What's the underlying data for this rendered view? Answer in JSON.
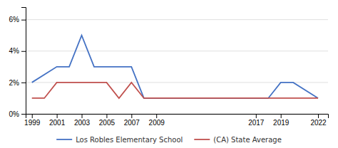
{
  "chart_data": {
    "type": "line",
    "series": [
      {
        "name": "Los Robles Elementary School",
        "color": "#4472c4",
        "x": [
          1999,
          2001,
          2002,
          2003,
          2004,
          2005,
          2007,
          2008,
          2018,
          2019,
          2020,
          2022
        ],
        "values": [
          0.02,
          0.03,
          0.03,
          0.05,
          0.03,
          0.03,
          0.03,
          0.01,
          0.01,
          0.02,
          0.02,
          0.01
        ]
      },
      {
        "name": "(CA) State Average",
        "color": "#c0504d",
        "x": [
          1999,
          2000,
          2001,
          2002,
          2004,
          2005,
          2006,
          2007,
          2008,
          2017,
          2018,
          2019,
          2022
        ],
        "values": [
          0.01,
          0.01,
          0.02,
          0.02,
          0.02,
          0.02,
          0.01,
          0.02,
          0.01,
          0.01,
          0.01,
          0.01,
          0.01
        ]
      }
    ],
    "xlim": [
      1998.5,
      2022.8
    ],
    "xticks": [
      1999,
      2001,
      2003,
      2005,
      2007,
      2009,
      2017,
      2019,
      2022
    ],
    "ylim": [
      0.0,
      0.068
    ],
    "yticks": [
      {
        "value": 0.0,
        "label": "0%"
      },
      {
        "value": 0.02,
        "label": "2%"
      },
      {
        "value": 0.04,
        "label": "4%"
      },
      {
        "value": 0.06,
        "label": "6%"
      }
    ],
    "grid": true,
    "legend": "bottom"
  }
}
